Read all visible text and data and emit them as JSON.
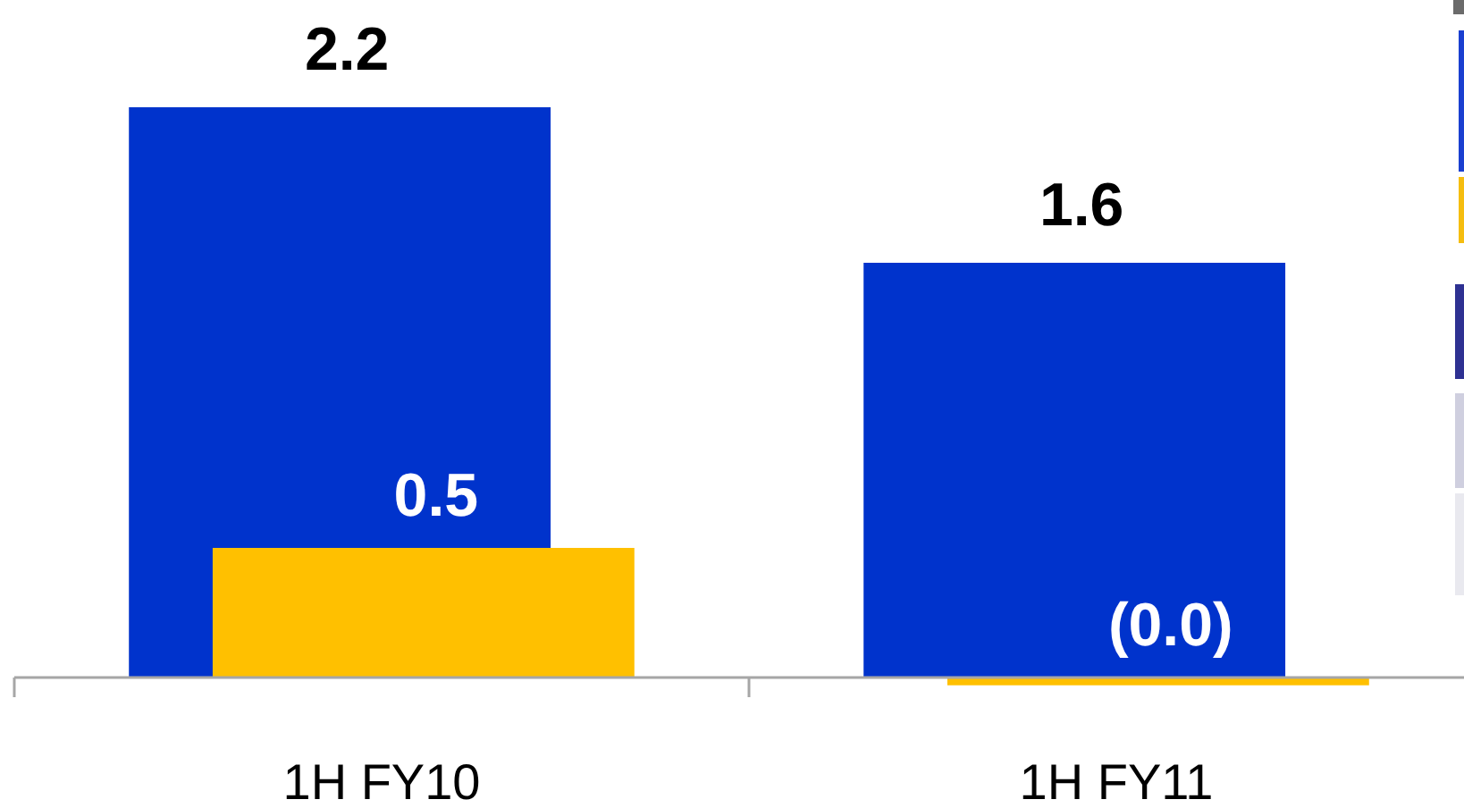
{
  "chart_data": {
    "type": "bar",
    "categories": [
      "1H FY10",
      "1H FY11"
    ],
    "series": [
      {
        "color": "#0033cc",
        "values": [
          2.2,
          1.6
        ],
        "value_labels": [
          "2.2",
          "1.6"
        ]
      },
      {
        "color": "#ffc000",
        "values": [
          0.5,
          -0.03
        ],
        "value_labels": [
          "0.5",
          "(0.0)"
        ]
      }
    ]
  }
}
